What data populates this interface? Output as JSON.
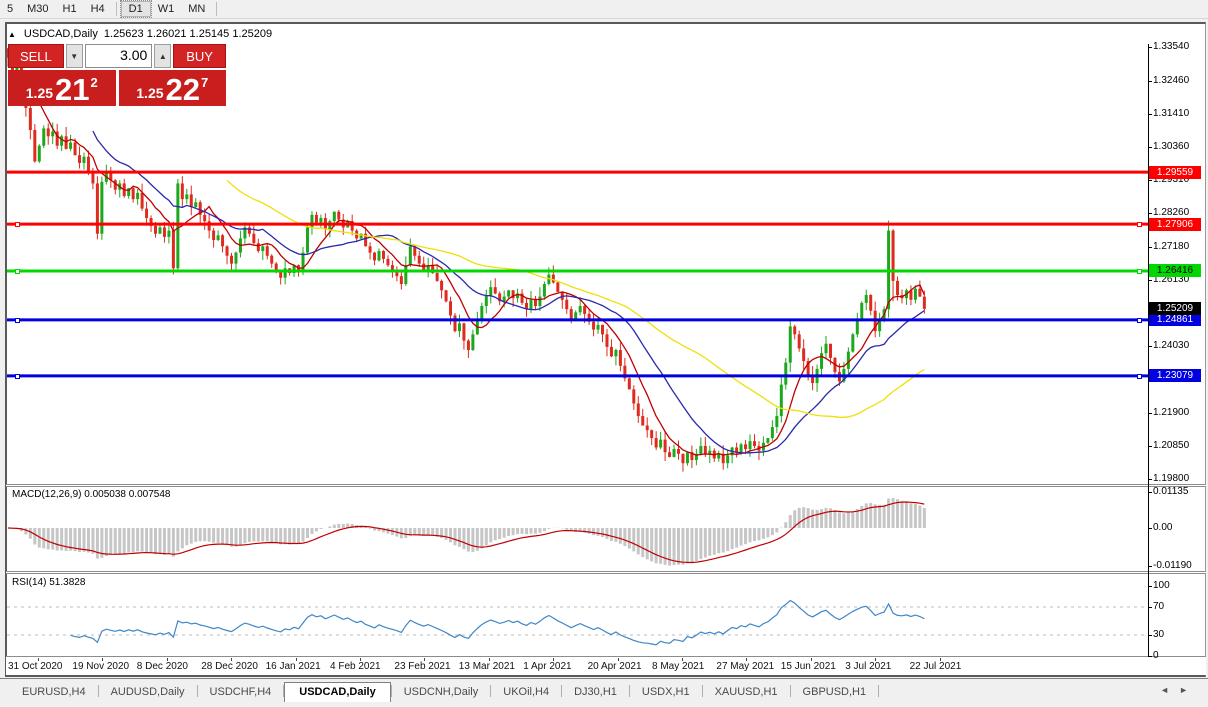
{
  "toolbar": {
    "timeframes": [
      "5",
      "M30",
      "H1",
      "H4",
      "D1",
      "W1",
      "MN"
    ],
    "active": "D1",
    "separators_after": [
      "H4",
      "MN"
    ]
  },
  "chart": {
    "header": {
      "collapse_icon": "▲",
      "symbol": "USDCAD,Daily",
      "ohlc": "1.25623 1.26021 1.25145 1.25209"
    },
    "trade_panel": {
      "sell_label": "SELL",
      "buy_label": "BUY",
      "volume": "3.00",
      "down_arrow": "▼",
      "up_arrow": "▲",
      "sell": {
        "base": "1.25",
        "big": "21",
        "sup": "2"
      },
      "buy": {
        "base": "1.25",
        "big": "22",
        "sup": "7"
      }
    }
  },
  "chart_data": {
    "type": "candlestick",
    "symbol": "USDCAD",
    "timeframe": "Daily",
    "title_ohlc": {
      "open": 1.25623,
      "high": 1.26021,
      "low": 1.25145,
      "close": 1.25209
    },
    "y_axis": {
      "top": 1.3354,
      "bottom": 1.198,
      "labels": [
        "1.33540",
        "1.32460",
        "1.31410",
        "1.30360",
        "1.29310",
        "1.28260",
        "1.27180",
        "1.26130",
        "1.24030",
        "1.22980",
        "1.21900",
        "1.20850",
        "1.19800"
      ]
    },
    "current_price": {
      "text": "1.25209",
      "value": 1.25209,
      "bg": "#000000",
      "fg": "#FFFFFF"
    },
    "levels": [
      {
        "text": "1.29559",
        "value": 1.29559,
        "color": "#FF0000",
        "fg": "#FFFFFF",
        "markers": false
      },
      {
        "text": "1.27906",
        "value": 1.27906,
        "color": "#FF0000",
        "fg": "#FFFFFF",
        "markers": true
      },
      {
        "text": "1.26416",
        "value": 1.26416,
        "color": "#00D800",
        "fg": "#000000",
        "markers": true
      },
      {
        "text": "1.24861",
        "value": 1.24861,
        "color": "#0000E0",
        "fg": "#FFFFFF",
        "markers": true
      },
      {
        "text": "1.23079",
        "value": 1.23079,
        "color": "#0000E0",
        "fg": "#FFFFFF",
        "markers": true
      }
    ],
    "moving_averages": [
      {
        "period": 8,
        "color": "#C00000"
      },
      {
        "period": 20,
        "color": "#2929AD"
      },
      {
        "period": 50,
        "color": "#EFE007"
      }
    ],
    "closes": [
      1.332,
      1.328,
      1.3305,
      1.323,
      1.316,
      1.309,
      1.299,
      1.304,
      1.3095,
      1.307,
      1.3085,
      1.304,
      1.307,
      1.303,
      1.305,
      1.301,
      1.2985,
      1.3005,
      1.296,
      1.292,
      1.276,
      1.2925,
      1.296,
      1.293,
      1.29,
      1.292,
      1.288,
      1.2905,
      1.287,
      1.289,
      1.284,
      1.281,
      1.2785,
      1.276,
      1.278,
      1.275,
      1.277,
      1.265,
      1.292,
      1.287,
      1.2885,
      1.2845,
      1.286,
      1.282,
      1.28,
      1.277,
      1.274,
      1.2755,
      1.272,
      1.269,
      1.2665,
      1.27,
      1.2745,
      1.278,
      1.276,
      1.273,
      1.2705,
      1.272,
      1.269,
      1.2665,
      1.264,
      1.262,
      1.265,
      1.2635,
      1.266,
      1.264,
      1.27,
      1.278,
      1.282,
      1.2795,
      1.281,
      1.2775,
      1.28,
      1.283,
      1.2805,
      1.278,
      1.28,
      1.277,
      1.2745,
      1.276,
      1.272,
      1.27,
      1.2675,
      1.2705,
      1.268,
      1.266,
      1.2645,
      1.2625,
      1.26,
      1.266,
      1.272,
      1.269,
      1.2665,
      1.2645,
      1.266,
      1.2635,
      1.261,
      1.258,
      1.2545,
      1.25,
      1.245,
      1.2475,
      1.242,
      1.239,
      1.244,
      1.2485,
      1.253,
      1.2565,
      1.259,
      1.257,
      1.2545,
      1.256,
      1.258,
      1.2555,
      1.257,
      1.254,
      1.252,
      1.255,
      1.253,
      1.256,
      1.26,
      1.263,
      1.2605,
      1.2575,
      1.255,
      1.252,
      1.249,
      1.251,
      1.253,
      1.2505,
      1.248,
      1.2455,
      1.247,
      1.244,
      1.24,
      1.237,
      1.239,
      1.234,
      1.23,
      1.2265,
      1.222,
      1.218,
      1.215,
      1.2135,
      1.211,
      1.208,
      1.2105,
      1.2065,
      1.205,
      1.2075,
      1.206,
      1.203,
      1.2065,
      1.204,
      1.206,
      1.2085,
      1.206,
      1.207,
      1.2045,
      1.206,
      1.203,
      1.2055,
      1.208,
      1.2065,
      1.209,
      1.2075,
      1.21,
      1.2085,
      1.207,
      1.2095,
      1.211,
      1.2145,
      1.218,
      1.228,
      1.235,
      1.2465,
      1.244,
      1.2395,
      1.2355,
      1.231,
      1.2285,
      1.233,
      1.238,
      1.241,
      1.2365,
      1.232,
      1.229,
      1.233,
      1.2385,
      1.244,
      1.249,
      1.254,
      1.2565,
      1.2515,
      1.245,
      1.249,
      1.252,
      1.277,
      1.261,
      1.2565,
      1.2555,
      1.258,
      1.255,
      1.2585,
      1.256,
      1.2521
    ],
    "wick_overrides": {
      "0": {
        "h": 1.334
      },
      "103": {
        "l": 1.2365
      },
      "151": {
        "l": 1.2003
      },
      "197": {
        "h": 1.2802
      },
      "198": {
        "l": 1.2545
      }
    },
    "style": {
      "bull": "#1CA81C",
      "bear": "#DE2B1E",
      "macd_hist": "#C6C6C6",
      "macd_signal": "#C00000",
      "rsi_line": "#3E86C6",
      "level_dash": "#BBBBBB"
    },
    "macd": {
      "label": "MACD(12,26,9)",
      "values": "0.005038 0.007548",
      "params": [
        12,
        26,
        9
      ],
      "axis_labels": [
        {
          "text": "0.01135",
          "value": 0.01135
        },
        {
          "text": "0.00",
          "value": 0.0
        },
        {
          "text": "-0.01190",
          "value": -0.0119
        }
      ]
    },
    "rsi": {
      "label": "RSI(14)",
      "value": "51.3828",
      "period": 14,
      "levels": [
        30,
        70
      ],
      "axis_labels": [
        {
          "text": "100",
          "value": 100
        },
        {
          "text": "70",
          "value": 70
        },
        {
          "text": "30",
          "value": 30
        },
        {
          "text": "0",
          "value": 0
        }
      ]
    },
    "x_axis_dates": [
      "31 Oct 2020",
      "19 Nov 2020",
      "8 Dec 2020",
      "28 Dec 2020",
      "16 Jan 2021",
      "4 Feb 2021",
      "23 Feb 2021",
      "13 Mar 2021",
      "1 Apr 2021",
      "20 Apr 2021",
      "8 May 2021",
      "27 May 2021",
      "15 Jun 2021",
      "3 Jul 2021",
      "22 Jul 2021"
    ]
  },
  "tabs": {
    "items": [
      "EURUSD,H4",
      "AUDUSD,Daily",
      "USDCHF,H4",
      "USDCAD,Daily",
      "USDCNH,Daily",
      "UKOil,H4",
      "DJ30,H1",
      "USDX,H1",
      "XAUUSD,H1",
      "GBPUSD,H1"
    ],
    "active_index": 3,
    "scroll_left": "◄",
    "scroll_right": "►"
  }
}
